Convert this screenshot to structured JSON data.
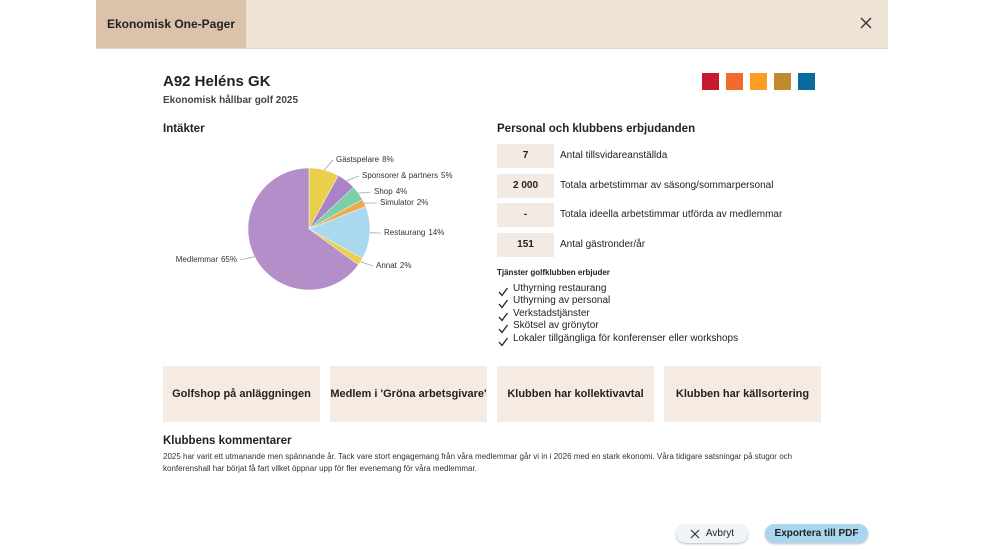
{
  "header": {
    "title": "Ekonomisk One-Pager"
  },
  "club": {
    "name": "A92 Heléns GK",
    "subtitle": "Ekonomisk hållbar golf 2025"
  },
  "chart_data": {
    "type": "pie",
    "title": "Intäkter",
    "categories": [
      "Gästspelare",
      "Sponsorer & partners",
      "Shop",
      "Simulator",
      "Restaurang",
      "Annat",
      "Medlemmar"
    ],
    "values": [
      8,
      5,
      4,
      2,
      14,
      2,
      65
    ],
    "value_labels": [
      "8%",
      "5%",
      "4%",
      "2%",
      "14%",
      "2%",
      "65%"
    ],
    "colors": [
      "#e9cf4c",
      "#a883c6",
      "#7ccfa8",
      "#f0a94c",
      "#a9d8ef",
      "#e9cf4c",
      "#b48ec8"
    ]
  },
  "staff": {
    "title": "Personal och klubbens erbjudanden",
    "rows": [
      {
        "value": "7",
        "label": "Antal tillsvidareanställda"
      },
      {
        "value": "2 000",
        "label": "Totala arbetstimmar av säsong/sommarpersonal"
      },
      {
        "value": "-",
        "label": "Totala ideella arbetstimmar utförda av medlemmar"
      },
      {
        "value": "151",
        "label": "Antal gästronder/år"
      }
    ]
  },
  "services": {
    "title": "Tjänster golfklubben erbjuder",
    "items": [
      "Uthyrning restaurang",
      "Uthyrning av personal",
      "Verkstadstjänster",
      "Skötsel av grönytor",
      "Lokaler tillgängliga för konferenser eller workshops"
    ]
  },
  "badges": [
    "Golfshop på anläggningen",
    "Medlem i 'Gröna arbetsgivare'",
    "Klubben har kollektivavtal",
    "Klubben har källsortering"
  ],
  "comments": {
    "title": "Klubbens kommentarer",
    "text": "2025 har varit ett utmanande men spännande år. Tack vare stort engagemang från våra medlemmar går vi in i 2026 med en stark ekonomi. Våra tidigare satsningar på stugor och konferenshall har börjat få fart vilket öppnar upp för fler evenemang för våra medlemmar."
  },
  "buttons": {
    "cancel": "Avbryt",
    "export": "Exportera till PDF"
  }
}
